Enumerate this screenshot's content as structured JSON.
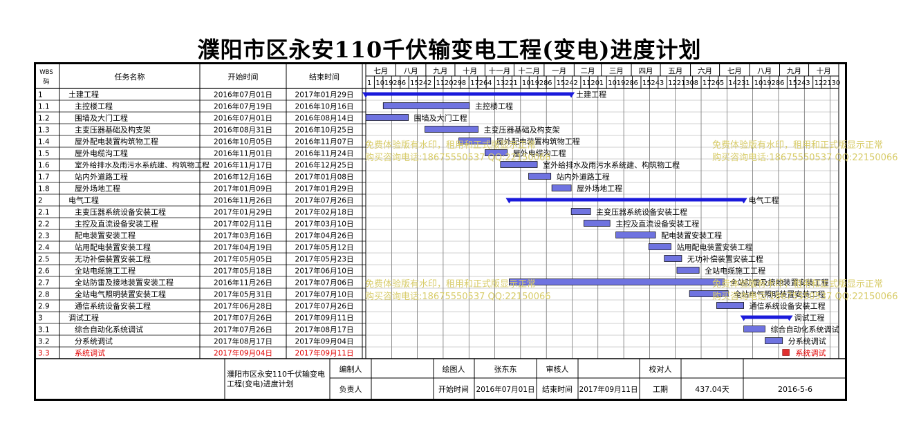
{
  "title": "濮阳市区永安110千伏输变电工程(变电)进度计划",
  "columns": {
    "wbs": "WBS码",
    "task": "任务名称",
    "start": "开始时间",
    "end": "结束时间"
  },
  "months": [
    "七月",
    "八月",
    "九月",
    "十月",
    "十一月",
    "十二月",
    "一月",
    "二月",
    "三月",
    "四月",
    "五月",
    "六月",
    "七月",
    "八月",
    "九月",
    "十月"
  ],
  "days": [
    "1",
    "10",
    "19",
    "28",
    "6",
    "15",
    "24",
    "2",
    "11",
    "20",
    "29",
    "8",
    "17",
    "26",
    "4",
    "13",
    "22",
    "1",
    "10",
    "19",
    "28",
    "6",
    "15",
    "24",
    "2",
    "11",
    "20",
    "1",
    "10",
    "19",
    "28",
    "6",
    "15",
    "24",
    "3",
    "12",
    "21",
    "30",
    "8",
    "17",
    "26",
    "5",
    "14",
    "23",
    "1",
    "10",
    "19",
    "28",
    "6",
    "15",
    "24",
    "3",
    "12",
    "21",
    "30"
  ],
  "tasks": [
    {
      "wbs": "1",
      "name": "土建工程",
      "start": "2016年07月01日",
      "end": "2017年01月29日",
      "bar_label": "土建工程",
      "kind": "summary",
      "level": 0
    },
    {
      "wbs": "1.1",
      "name": "主控楼工程",
      "start": "2016年07月19日",
      "end": "2016年10月16日",
      "bar_label": "主控楼工程",
      "kind": "task",
      "level": 1
    },
    {
      "wbs": "1.2",
      "name": "围墙及大门工程",
      "start": "2016年07月01日",
      "end": "2016年08月14日",
      "bar_label": "围墙及大门工程",
      "kind": "task",
      "level": 1
    },
    {
      "wbs": "1.3",
      "name": "主变压器基础及构支架",
      "start": "2016年08月31日",
      "end": "2016年10月25日",
      "bar_label": "主变压器基础及构支架",
      "kind": "task",
      "level": 1
    },
    {
      "wbs": "1.4",
      "name": "屋外配电装置构筑物工程",
      "start": "2016年10月05日",
      "end": "2016年11月07日",
      "bar_label": "屋外配电装置构筑物工程",
      "kind": "task",
      "level": 1
    },
    {
      "wbs": "1.5",
      "name": "屋外电缆沟工程",
      "start": "2016年11月01日",
      "end": "2016年11月24日",
      "bar_label": "屋外电缆沟工程",
      "kind": "task",
      "level": 1
    },
    {
      "wbs": "1.6",
      "name": "室外给排水及雨污水系统建、构筑物工程",
      "start": "2016年11月17日",
      "end": "2016年12月25日",
      "bar_label": "室外给排水及雨污水系统建、构筑物工程",
      "kind": "task",
      "level": 1
    },
    {
      "wbs": "1.7",
      "name": "站内外道路工程",
      "start": "2016年12月16日",
      "end": "2017年01月08日",
      "bar_label": "站内外道路工程",
      "kind": "task",
      "level": 1
    },
    {
      "wbs": "1.8",
      "name": "屋外场地工程",
      "start": "2017年01月09日",
      "end": "2017年01月29日",
      "bar_label": "屋外场地工程",
      "kind": "task",
      "level": 1
    },
    {
      "wbs": "2",
      "name": "电气工程",
      "start": "2016年11月26日",
      "end": "2017年07月26日",
      "bar_label": "电气工程",
      "kind": "summary",
      "level": 0
    },
    {
      "wbs": "2.1",
      "name": "主变压器系统设备安装工程",
      "start": "2017年01月29日",
      "end": "2017年02月18日",
      "bar_label": "主变压器系统设备安装工程",
      "kind": "task",
      "level": 1
    },
    {
      "wbs": "2.2",
      "name": "主控及直流设备安装工程",
      "start": "2017年02月11日",
      "end": "2017年03月10日",
      "bar_label": "主控及直流设备安装工程",
      "kind": "task",
      "level": 1
    },
    {
      "wbs": "2.3",
      "name": "配电装置安装工程",
      "start": "2017年03月16日",
      "end": "2017年04月26日",
      "bar_label": "配电装置安装工程",
      "kind": "task",
      "level": 1
    },
    {
      "wbs": "2.4",
      "name": "站用配电装置安装工程",
      "start": "2017年04月19日",
      "end": "2017年05月12日",
      "bar_label": "站用配电装置安装工程",
      "kind": "task",
      "level": 1
    },
    {
      "wbs": "2.5",
      "name": "无功补偿装置安装工程",
      "start": "2017年05月05日",
      "end": "2017年05月23日",
      "bar_label": "无功补偿装置安装工程",
      "kind": "task",
      "level": 1
    },
    {
      "wbs": "2.6",
      "name": "全站电缆施工工程",
      "start": "2017年05月18日",
      "end": "2017年06月10日",
      "bar_label": "全站电缆施工工程",
      "kind": "task",
      "level": 1
    },
    {
      "wbs": "2.7",
      "name": "全站防雷及接地装置安装工程",
      "start": "2016年11月26日",
      "end": "2017年07月06日",
      "bar_label": "全站防雷及接地装置安装工程",
      "kind": "task",
      "level": 1
    },
    {
      "wbs": "2.8",
      "name": "全站电气照明装置安装工程",
      "start": "2017年05月31日",
      "end": "2017年07月10日",
      "bar_label": "全站电气照明装置安装工程",
      "kind": "task",
      "level": 1
    },
    {
      "wbs": "2.9",
      "name": "通信系统设备安装工程",
      "start": "2017年06月28日",
      "end": "2017年07月26日",
      "bar_label": "通信系统设备安装工程",
      "kind": "task",
      "level": 1
    },
    {
      "wbs": "3",
      "name": "调试工程",
      "start": "2017年07月26日",
      "end": "2017年09月11日",
      "bar_label": "调试工程",
      "kind": "summary",
      "level": 0
    },
    {
      "wbs": "3.1",
      "name": "综合自动化系统调试",
      "start": "2017年07月26日",
      "end": "2017年08月17日",
      "bar_label": "综合自动化系统调试",
      "kind": "task",
      "level": 1
    },
    {
      "wbs": "3.2",
      "name": "分系统调试",
      "start": "2017年08月17日",
      "end": "2017年09月04日",
      "bar_label": "分系统调试",
      "kind": "task",
      "level": 1
    },
    {
      "wbs": "3.3",
      "name": "系统调试",
      "start": "2017年09月04日",
      "end": "2017年09月11日",
      "bar_label": "系统调试",
      "kind": "critical",
      "level": 1
    }
  ],
  "footer": {
    "project": "濮阳市区永安110千伏输变电工程(变电)进度计划",
    "editor_label": "编制人",
    "drawer_label": "绘图人",
    "drawer": "张东东",
    "reviewer_label": "审核人",
    "checker_label": "校对人",
    "owner_label": "负责人",
    "start_label": "开始时间",
    "start": "2016年07月01日",
    "end_label": "结束时间",
    "end": "2017年09月11日",
    "duration_label": "工期",
    "duration": "437.04天",
    "date": "2016-5-6"
  },
  "watermarks": [
    "免费体验版有水印，租用和正式版显示正常",
    "购买咨询电话:18675550537 QQ:22150066",
    "免费体验版有水印，租用和正式版显示正常",
    "购买咨询电话:18675550537 QQ:22150066",
    "免费体验版有水印，租用和正式版显示正常",
    "购买咨询电话:18675550537 QQ:22150066",
    "免费体验版有水印，租用和正式版显示正常",
    "购买咨询电话:18675550537 QQ:22150066"
  ],
  "colors": {
    "task_bar": "#6f73e0",
    "summary_bar": "#1a1adb",
    "critical_bar": "#e03030",
    "critical_text": "#e00000",
    "watermark": "#d8cc6a"
  }
}
